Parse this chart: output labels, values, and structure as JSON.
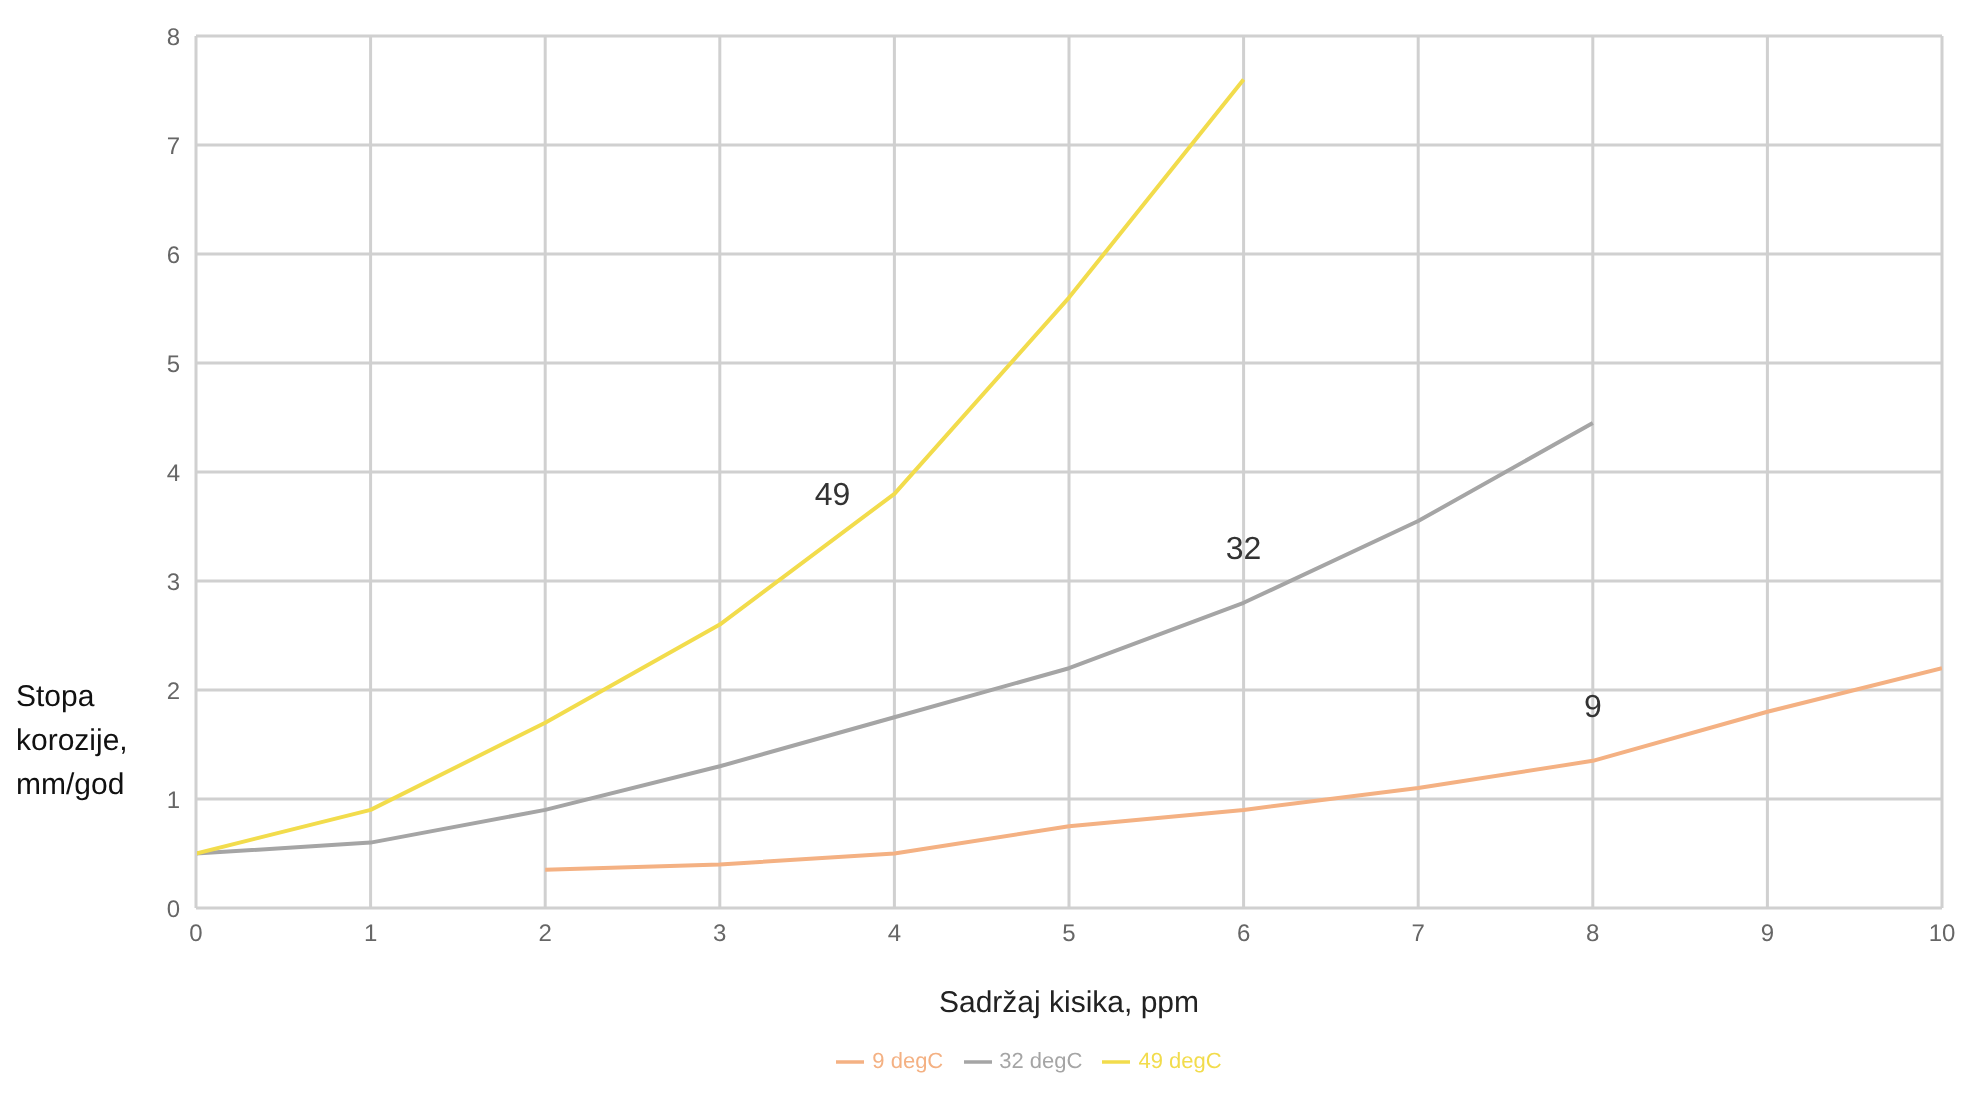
{
  "chart_data": {
    "type": "line",
    "xlabel": "Sadržaj kisika, ppm",
    "ylabel": "Stopa korozije, mm/god",
    "xlim": [
      0,
      10
    ],
    "xticks": [
      0,
      1,
      2,
      3,
      4,
      5,
      6,
      7,
      8,
      9,
      10
    ],
    "ylim": [
      0,
      8
    ],
    "yticks": [
      0,
      1,
      2,
      3,
      4,
      5,
      6,
      7,
      8
    ],
    "grid": true,
    "legend": "bottom",
    "marker": "none",
    "series": [
      {
        "name": "9 degC",
        "color": "#f4b183",
        "x": [
          2,
          3,
          4,
          5,
          6,
          7,
          8,
          9,
          10
        ],
        "values": [
          0.35,
          0.4,
          0.5,
          0.75,
          0.9,
          1.1,
          1.35,
          1.8,
          2.2
        ]
      },
      {
        "name": "32 degC",
        "color": "#a5a5a5",
        "x": [
          0,
          1,
          2,
          3,
          4,
          5,
          6,
          7,
          8
        ],
        "values": [
          0.5,
          0.6,
          0.9,
          1.3,
          1.75,
          2.2,
          2.8,
          3.55,
          4.45
        ]
      },
      {
        "name": "49 degC",
        "color": "#f2dc4c",
        "x": [
          0,
          1,
          2,
          3,
          4,
          5,
          6
        ],
        "values": [
          0.5,
          0.9,
          1.7,
          2.6,
          3.8,
          5.6,
          7.6
        ]
      }
    ],
    "annotations": [
      "9",
      "32",
      "49"
    ]
  }
}
